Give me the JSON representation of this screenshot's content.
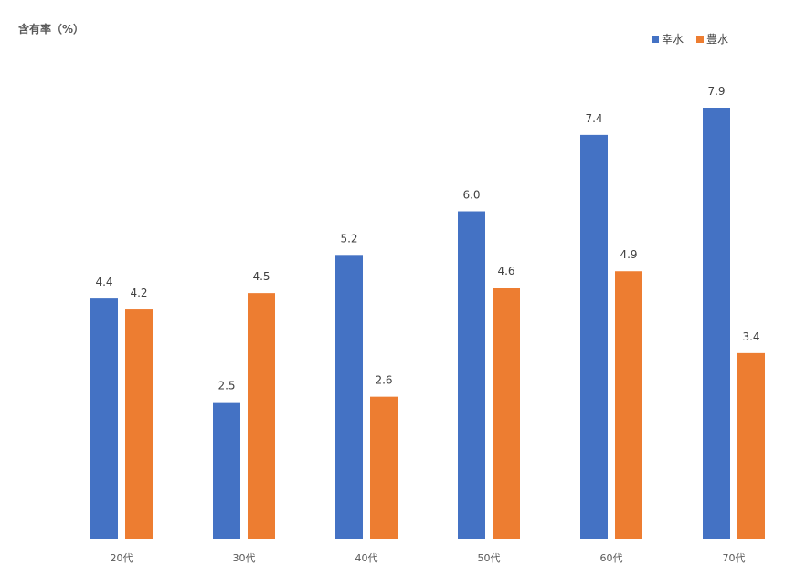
{
  "chart_data": {
    "type": "bar",
    "title": "",
    "ylabel": "含有率（%）",
    "xlabel": "",
    "categories": [
      "20代",
      "30代",
      "40代",
      "50代",
      "60代",
      "70代"
    ],
    "series": [
      {
        "name": "幸水",
        "color": "#4472C4",
        "values": [
          4.4,
          2.5,
          5.2,
          6.0,
          7.4,
          7.9
        ]
      },
      {
        "name": "豊水",
        "color": "#ED7D31",
        "values": [
          4.2,
          4.5,
          2.6,
          4.6,
          4.9,
          3.4
        ]
      }
    ],
    "ylim": [
      0,
      7.9
    ],
    "grid": false,
    "legend": "top-right",
    "data_labels": true
  }
}
